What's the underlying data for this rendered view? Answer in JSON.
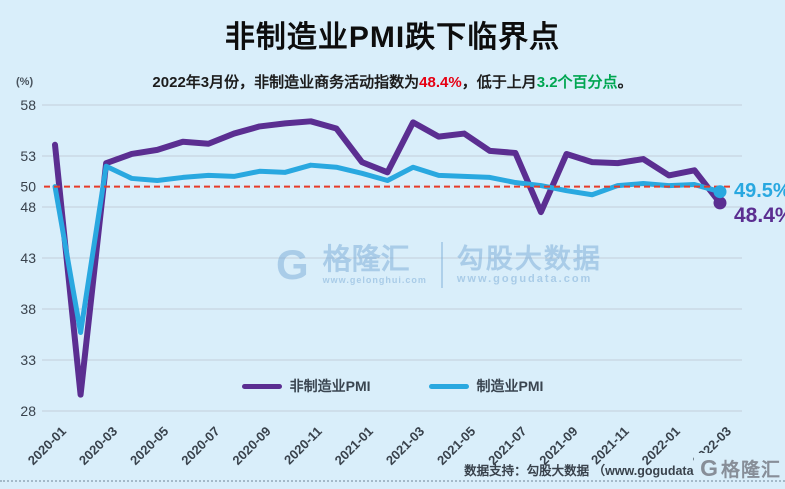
{
  "page": {
    "title": "非制造业PMI跌下临界点",
    "unit_label": "(%)"
  },
  "subtitle": {
    "prefix": "2022年3月份，非制造业商务活动指数为",
    "highlight_red": "48.4%",
    "middle": "，低于上月",
    "highlight_green": "3.2个百分点",
    "suffix": "。"
  },
  "legend": [
    {
      "label": "非制造业PMI",
      "color": "#5b2e91"
    },
    {
      "label": "制造业PMI",
      "color": "#29a8e0"
    }
  ],
  "end_labels": [
    {
      "text": "49.5%",
      "color": "#29a8e0"
    },
    {
      "text": "48.4%",
      "color": "#5b2e91"
    }
  ],
  "watermark": {
    "brand_glyph": "G",
    "brand": "格隆汇",
    "brand_url": "www.gelonghui.com",
    "product": "勾股大数据",
    "product_url": "www.gogudata.com"
  },
  "footer": {
    "credit": "数据支持：勾股大数据 （www.gogudata.",
    "logo_glyph": "G",
    "logo_text": "格隆汇"
  },
  "colors": {
    "background": "#d9eefa",
    "grid": "#c3cfd9",
    "tick_text": "#39424c",
    "reference_red": "#e63b28",
    "purple": "#5b2e91",
    "blue": "#29a8e0"
  },
  "chart_data": {
    "type": "line",
    "title": "非制造业PMI跌下临界点",
    "ylabel": "(%)",
    "ylim": [
      28,
      58
    ],
    "grid": true,
    "legend_position": "bottom",
    "x": [
      "2020-01",
      "2020-02",
      "2020-03",
      "2020-04",
      "2020-05",
      "2020-06",
      "2020-07",
      "2020-08",
      "2020-09",
      "2020-10",
      "2020-11",
      "2020-12",
      "2021-01",
      "2021-02",
      "2021-03",
      "2021-04",
      "2021-05",
      "2021-06",
      "2021-07",
      "2021-08",
      "2021-09",
      "2021-10",
      "2021-11",
      "2021-12",
      "2022-01",
      "2022-02",
      "2022-03"
    ],
    "x_tick_every": 2,
    "y_ticks": [
      58,
      53,
      50,
      48,
      43,
      38,
      33,
      28
    ],
    "gridline_ticks": [
      58,
      53,
      48,
      43,
      38,
      33,
      28
    ],
    "reference_line": {
      "value": 50,
      "color": "#e63b28",
      "style": "dashed"
    },
    "series": [
      {
        "name": "非制造业PMI",
        "color": "#5b2e91",
        "values": [
          54.1,
          29.6,
          52.3,
          53.2,
          53.6,
          54.4,
          54.2,
          55.2,
          55.9,
          56.2,
          56.4,
          55.7,
          52.4,
          51.4,
          56.3,
          54.9,
          55.2,
          53.5,
          53.3,
          47.5,
          53.2,
          52.4,
          52.3,
          52.7,
          51.1,
          51.6,
          48.4
        ]
      },
      {
        "name": "制造业PMI",
        "color": "#29a8e0",
        "values": [
          50.0,
          35.7,
          52.0,
          50.8,
          50.6,
          50.9,
          51.1,
          51.0,
          51.5,
          51.4,
          52.1,
          51.9,
          51.3,
          50.6,
          51.9,
          51.1,
          51.0,
          50.9,
          50.4,
          50.1,
          49.6,
          49.2,
          50.1,
          50.3,
          50.1,
          50.2,
          49.5
        ]
      }
    ]
  }
}
